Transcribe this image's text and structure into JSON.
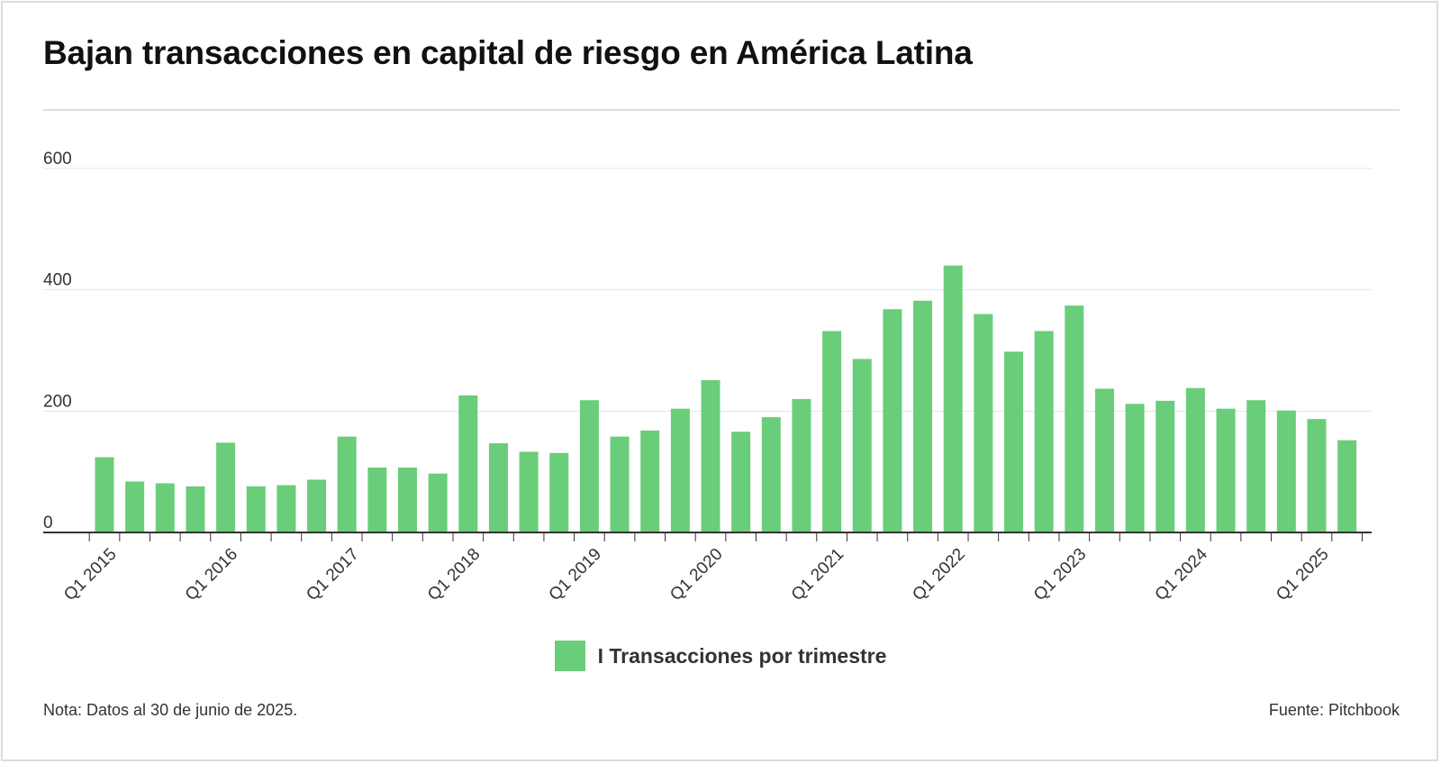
{
  "title": "Bajan transacciones en capital de riesgo en América Latina",
  "note": "Nota: Datos al 30 de junio de 2025.",
  "source": "Fuente: Pitchbook",
  "legend_label": "I Transacciones por trimestre",
  "colors": {
    "bar": "#6acd79",
    "grid": "#e6e6e6",
    "axis": "#333333"
  },
  "chart_data": {
    "type": "bar",
    "title": "Bajan transacciones en capital de riesgo en América Latina",
    "xlabel": "",
    "ylabel": "",
    "ylim": [
      0,
      600
    ],
    "yticks": [
      0,
      200,
      400,
      600
    ],
    "grid": true,
    "legend_position": "bottom-center",
    "categories": [
      "Q1 2015",
      "Q2 2015",
      "Q3 2015",
      "Q4 2015",
      "Q1 2016",
      "Q2 2016",
      "Q3 2016",
      "Q4 2016",
      "Q1 2017",
      "Q2 2017",
      "Q3 2017",
      "Q4 2017",
      "Q1 2018",
      "Q2 2018",
      "Q3 2018",
      "Q4 2018",
      "Q1 2019",
      "Q2 2019",
      "Q3 2019",
      "Q4 2019",
      "Q1 2020",
      "Q2 2020",
      "Q3 2020",
      "Q4 2020",
      "Q1 2021",
      "Q2 2021",
      "Q3 2021",
      "Q4 2021",
      "Q1 2022",
      "Q2 2022",
      "Q3 2022",
      "Q4 2022",
      "Q1 2023",
      "Q2 2023",
      "Q3 2023",
      "Q4 2023",
      "Q1 2024",
      "Q2 2024",
      "Q3 2024",
      "Q4 2024",
      "Q1 2025",
      "Q2 2025"
    ],
    "tick_labels": [
      "Q1 2015",
      "Q1 2016",
      "Q1 2017",
      "Q1 2018",
      "Q1 2019",
      "Q1 2020",
      "Q1 2021",
      "Q1 2022",
      "Q1 2023",
      "Q1 2024",
      "Q1 2025"
    ],
    "series": [
      {
        "name": "I Transacciones por trimestre",
        "values": [
          124,
          84,
          81,
          76,
          148,
          76,
          78,
          87,
          158,
          107,
          107,
          97,
          226,
          147,
          133,
          131,
          218,
          158,
          168,
          204,
          251,
          166,
          190,
          220,
          332,
          286,
          368,
          382,
          440,
          360,
          298,
          332,
          374,
          237,
          212,
          217,
          238,
          204,
          218,
          201,
          187,
          152
        ]
      }
    ]
  }
}
